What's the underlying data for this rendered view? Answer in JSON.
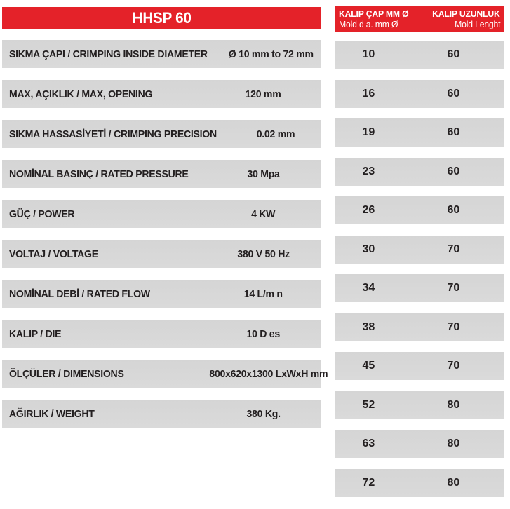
{
  "left_table": {
    "title": "HHSP 60",
    "rows": [
      {
        "label": "SIKMA ÇAPI / CRIMPING INSIDE DIAMETER",
        "value": "Ø 10 mm to 72 mm"
      },
      {
        "label": "MAX, AÇIKLIK / MAX, OPENING",
        "value": "120 mm"
      },
      {
        "label": "SIKMA HASSASİYETİ / CRIMPING PRECISION",
        "value": "0.02 mm"
      },
      {
        "label": "NOMİNAL BASINÇ / RATED PRESSURE",
        "value": "30 Mpa"
      },
      {
        "label": "GÜÇ / POWER",
        "value": "4 KW"
      },
      {
        "label": "VOLTAJ / VOLTAGE",
        "value": "380 V 50 Hz"
      },
      {
        "label": "NOMİNAL DEBİ / RATED FLOW",
        "value": "14 L/m n"
      },
      {
        "label": "KALIP / DIE",
        "value": "10 D es"
      },
      {
        "label": "ÖLÇÜLER / DIMENSIONS",
        "value": "800x620x1300 LxWxH mm"
      },
      {
        "label": "AĞIRLIK / WEIGHT",
        "value": "380 Kg."
      }
    ]
  },
  "right_table": {
    "header": {
      "col1_line1": "KALIP ÇAP MM Ø",
      "col1_line2": "Mold d a. mm Ø",
      "col2_line1": "KALIP UZUNLUK",
      "col2_line2": "Mold Lenght"
    },
    "rows": [
      [
        "10",
        "60"
      ],
      [
        "16",
        "60"
      ],
      [
        "19",
        "60"
      ],
      [
        "23",
        "60"
      ],
      [
        "26",
        "60"
      ],
      [
        "30",
        "70"
      ],
      [
        "34",
        "70"
      ],
      [
        "38",
        "70"
      ],
      [
        "45",
        "70"
      ],
      [
        "52",
        "80"
      ],
      [
        "63",
        "80"
      ],
      [
        "72",
        "80"
      ]
    ]
  },
  "colors": {
    "header_red": "#e42229",
    "row_gray": "#d8d8d8",
    "text": "#231f20"
  }
}
